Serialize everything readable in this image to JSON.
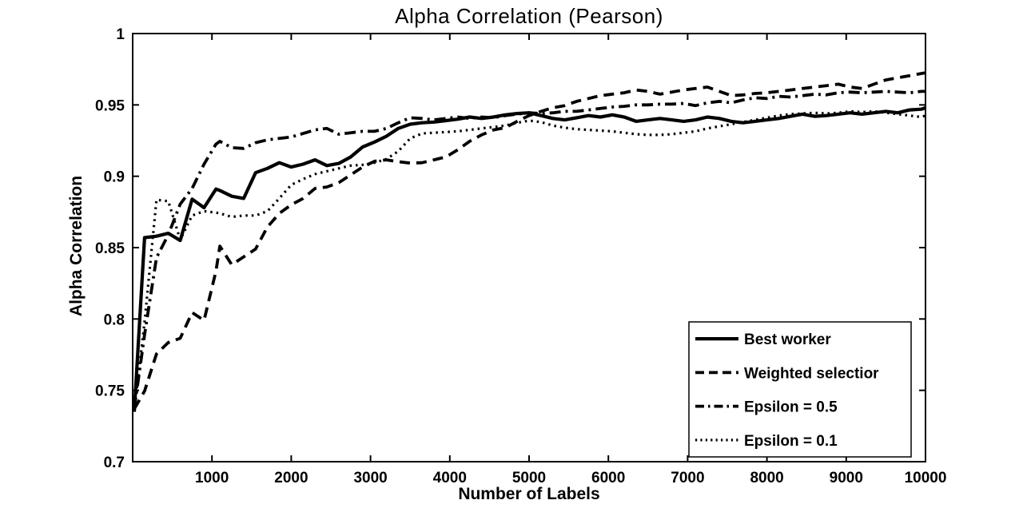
{
  "figure": {
    "background": "#ffffff",
    "line_color": "#000000"
  },
  "chart_data": {
    "type": "line",
    "title": "Alpha Correlation (Pearson)",
    "xlabel": "Number of Labels",
    "ylabel": "Alpha Correlation",
    "xlim": [
      0,
      10000
    ],
    "ylim": [
      0.7,
      1.0
    ],
    "grid": false,
    "x_ticks": [
      1000,
      2000,
      3000,
      4000,
      5000,
      6000,
      7000,
      8000,
      9000,
      10000
    ],
    "x_tick_labels": [
      "1000",
      "2000",
      "3000",
      "4000",
      "5000",
      "6000",
      "7000",
      "8000",
      "9000",
      "10000"
    ],
    "y_ticks": [
      0.7,
      0.75,
      0.8,
      0.85,
      0.9,
      0.95,
      1
    ],
    "y_tick_labels": [
      "0.7",
      "0.75",
      "0.8",
      "0.85",
      "0.9",
      "0.95",
      "1"
    ],
    "legend_position": "lower-right",
    "x": [
      20,
      150,
      300,
      450,
      600,
      750,
      900,
      1050,
      1100,
      1250,
      1400,
      1550,
      1700,
      1850,
      2000,
      2150,
      2300,
      2450,
      2600,
      2750,
      2900,
      3050,
      3200,
      3350,
      3500,
      3650,
      3800,
      3950,
      4100,
      4250,
      4400,
      4550,
      4700,
      4850,
      5000,
      5150,
      5300,
      5450,
      5600,
      5750,
      5900,
      6050,
      6200,
      6350,
      6500,
      6650,
      6800,
      6950,
      7100,
      7250,
      7400,
      7550,
      7700,
      7850,
      8000,
      8150,
      8300,
      8450,
      8600,
      8750,
      8900,
      9050,
      9200,
      9350,
      9500,
      9650,
      9800,
      9950,
      10000
    ],
    "series": [
      {
        "name": "Best worker",
        "legend_label": "Best worker",
        "line_style": "solid",
        "line_width": 4.2,
        "values": [
          0.735,
          0.857,
          0.858,
          0.86,
          0.855,
          0.884,
          0.878,
          0.891,
          0.89,
          0.886,
          0.8845,
          0.9025,
          0.9055,
          0.9095,
          0.9065,
          0.9085,
          0.9115,
          0.9075,
          0.909,
          0.9135,
          0.9205,
          0.924,
          0.928,
          0.9335,
          0.9365,
          0.9375,
          0.938,
          0.939,
          0.94,
          0.9415,
          0.9405,
          0.9415,
          0.943,
          0.944,
          0.9445,
          0.9425,
          0.9405,
          0.9395,
          0.941,
          0.9425,
          0.9415,
          0.943,
          0.9415,
          0.9385,
          0.9395,
          0.9405,
          0.9395,
          0.9385,
          0.9395,
          0.9415,
          0.9405,
          0.9385,
          0.9375,
          0.9385,
          0.9395,
          0.9405,
          0.942,
          0.9435,
          0.942,
          0.9425,
          0.9435,
          0.9445,
          0.9435,
          0.9445,
          0.9455,
          0.9445,
          0.9465,
          0.947,
          0.948
        ]
      },
      {
        "name": "Weighted selection",
        "legend_label": "Weighted selectior",
        "line_style": "dashed",
        "line_width": 3.8,
        "values": [
          0.737,
          0.7495,
          0.7755,
          0.7835,
          0.7865,
          0.8045,
          0.799,
          0.8335,
          0.851,
          0.838,
          0.8435,
          0.849,
          0.8645,
          0.874,
          0.88,
          0.8845,
          0.8915,
          0.8925,
          0.8955,
          0.901,
          0.9065,
          0.9105,
          0.9115,
          0.9102,
          0.9092,
          0.9095,
          0.9115,
          0.9135,
          0.9185,
          0.9245,
          0.929,
          0.9325,
          0.934,
          0.9385,
          0.9425,
          0.9455,
          0.948,
          0.9495,
          0.9525,
          0.9545,
          0.9565,
          0.9575,
          0.9585,
          0.9605,
          0.9595,
          0.9575,
          0.959,
          0.9605,
          0.9615,
          0.9625,
          0.9595,
          0.9565,
          0.957,
          0.958,
          0.9585,
          0.9595,
          0.9605,
          0.9615,
          0.9625,
          0.9635,
          0.9645,
          0.9625,
          0.9615,
          0.9645,
          0.9675,
          0.969,
          0.9705,
          0.972,
          0.9725
        ]
      },
      {
        "name": "Epsilon = 0.5",
        "legend_label": "Epsilon = 0.5",
        "line_style": "dash-dot",
        "line_width": 3.8,
        "values": [
          0.737,
          0.789,
          0.843,
          0.859,
          0.8805,
          0.8915,
          0.9085,
          0.9225,
          0.9245,
          0.92,
          0.9195,
          0.9235,
          0.9255,
          0.9265,
          0.9275,
          0.93,
          0.9325,
          0.9335,
          0.9295,
          0.9305,
          0.9315,
          0.9315,
          0.9335,
          0.9375,
          0.941,
          0.9405,
          0.9395,
          0.9405,
          0.9415,
          0.9405,
          0.9415,
          0.941,
          0.9425,
          0.9435,
          0.9445,
          0.944,
          0.9445,
          0.9455,
          0.9455,
          0.9465,
          0.9475,
          0.9485,
          0.949,
          0.95,
          0.95,
          0.9505,
          0.9505,
          0.951,
          0.9495,
          0.9515,
          0.9525,
          0.9515,
          0.9535,
          0.955,
          0.9545,
          0.956,
          0.9555,
          0.9565,
          0.9575,
          0.957,
          0.9585,
          0.959,
          0.9585,
          0.959,
          0.9595,
          0.959,
          0.9585,
          0.9595,
          0.9595
        ]
      },
      {
        "name": "Epsilon = 0.1",
        "legend_label": "Epsilon = 0.1",
        "line_style": "dotted",
        "line_width": 3.2,
        "values": [
          0.735,
          0.798,
          0.8835,
          0.8825,
          0.8555,
          0.8725,
          0.8755,
          0.8745,
          0.874,
          0.8715,
          0.8725,
          0.8725,
          0.8755,
          0.8845,
          0.894,
          0.898,
          0.9015,
          0.9035,
          0.9055,
          0.9075,
          0.908,
          0.9095,
          0.912,
          0.9175,
          0.9265,
          0.93,
          0.9305,
          0.931,
          0.9315,
          0.9325,
          0.9335,
          0.9345,
          0.9355,
          0.9375,
          0.939,
          0.938,
          0.9355,
          0.934,
          0.933,
          0.9325,
          0.932,
          0.9315,
          0.9305,
          0.9295,
          0.929,
          0.929,
          0.9295,
          0.9305,
          0.9315,
          0.9335,
          0.935,
          0.9365,
          0.938,
          0.9395,
          0.941,
          0.9425,
          0.9435,
          0.944,
          0.9445,
          0.944,
          0.9445,
          0.9455,
          0.945,
          0.9455,
          0.9445,
          0.9435,
          0.9425,
          0.9415,
          0.9425
        ]
      }
    ]
  }
}
